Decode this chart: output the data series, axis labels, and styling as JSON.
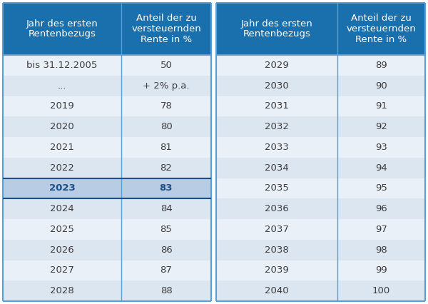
{
  "header_bg": "#1a6fad",
  "header_text_color": "#ffffff",
  "row_bg_dark": "#dce6f1",
  "row_bg_light": "#eaf0f8",
  "highlight_bg": "#b8cce4",
  "highlight_text_color": "#1a4f8a",
  "body_text_color": "#3d3d3d",
  "border_color": "#5a9fd4",
  "col_headers": [
    "Jahr des ersten\nRentenbezugs",
    "Anteil der zu\nversteuernden\nRente in %",
    "Jahr des ersten\nRentenbezugs",
    "Anteil der zu\nversteuernden\nRente in %"
  ],
  "left_col1": [
    "bis 31.12.2005",
    "...",
    "2019",
    "2020",
    "2021",
    "2022",
    "2023",
    "2024",
    "2025",
    "2026",
    "2027",
    "2028"
  ],
  "left_col2": [
    "50",
    "+ 2% p.a.",
    "78",
    "80",
    "81",
    "82",
    "83",
    "84",
    "85",
    "86",
    "87",
    "88"
  ],
  "right_col1": [
    "2029",
    "2030",
    "2031",
    "2032",
    "2033",
    "2034",
    "2035",
    "2036",
    "2037",
    "2038",
    "2039",
    "2040"
  ],
  "right_col2": [
    "89",
    "90",
    "91",
    "92",
    "93",
    "94",
    "95",
    "96",
    "97",
    "98",
    "99",
    "100"
  ],
  "highlight_row_index": 6,
  "figsize": [
    6.0,
    4.26
  ],
  "dpi": 100
}
